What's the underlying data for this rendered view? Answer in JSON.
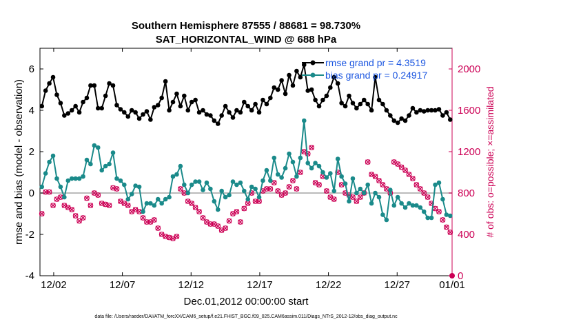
{
  "chart_data": {
    "type": "line",
    "title": "Southern Hemisphere 87555 / 88681 = 98.730%",
    "subtitle": "SAT_HORIZONTAL_WIND @ 688 hPa",
    "xlabel": "Dec.01,2012 00:00:00 start",
    "ylabel_left": "rmse and bias (model - observation)",
    "ylabel_right": "# of obs: o=possible; ×=assimilated",
    "footer": "data file: /Users/raeder/DAI/ATM_forcXX/CAM6_setup/f.e21.FHIST_BGC.f09_025.CAM6assim.011/Diags_NTrS_2012-12/obs_diag_output.nc",
    "xlim": [
      1.0,
      31.0
    ],
    "ylim_left": [
      -4,
      7
    ],
    "ylim_right": [
      0,
      2200
    ],
    "x_ticks": [
      2,
      7,
      12,
      17,
      22,
      27,
      31
    ],
    "x_tick_labels": [
      "12/02",
      "12/07",
      "12/12",
      "12/17",
      "12/22",
      "12/27",
      "01/01"
    ],
    "y_left_ticks": [
      -4,
      -2,
      0,
      2,
      4,
      6
    ],
    "y_left_tick_labels": [
      "-4",
      "-2",
      "0",
      "2",
      "4",
      "6"
    ],
    "y_right_ticks": [
      0,
      400,
      800,
      1200,
      1600,
      2000
    ],
    "y_right_tick_labels": [
      "0",
      "400",
      "800",
      "1200",
      "1600",
      "2000"
    ],
    "series": [
      {
        "name": "rmse grand pr = 4.3519",
        "axis": "left",
        "color": "#000000",
        "marker": "filled-circle",
        "values": [
          4.2,
          4.95,
          5.3,
          5.6,
          4.75,
          4.35,
          3.75,
          3.85,
          4.0,
          4.2,
          3.9,
          4.4,
          4.6,
          5.2,
          5.2,
          4.1,
          4.1,
          4.7,
          5.3,
          5.2,
          4.25,
          4.05,
          3.9,
          3.7,
          4.0,
          3.9,
          3.6,
          3.8,
          3.95,
          3.55,
          4.15,
          4.25,
          4.6,
          5.4,
          4.0,
          4.4,
          4.8,
          4.2,
          4.7,
          4.0,
          4.4,
          4.5,
          3.9,
          4.0,
          3.8,
          3.75,
          3.5,
          3.35,
          3.75,
          4.2,
          3.9,
          3.65,
          4.0,
          3.9,
          4.4,
          4.2,
          4.0,
          4.3,
          3.9,
          4.5,
          4.3,
          4.6,
          5.1,
          5.0,
          5.45,
          4.8,
          5.7,
          5.2,
          5.9,
          5.6,
          6.2,
          4.95,
          5.0,
          4.5,
          4.2,
          4.5,
          4.7,
          5.1,
          5.6,
          5.3,
          4.35,
          4.2,
          4.7,
          4.35,
          4.1,
          4.3,
          4.5,
          4.3,
          4.0,
          5.6,
          4.5,
          4.3,
          4.0,
          3.75,
          3.5,
          3.4,
          3.6,
          3.5,
          3.75,
          4.1,
          3.9,
          4.0,
          3.95,
          4.0,
          4.0,
          4.0,
          4.05,
          3.75,
          3.9,
          3.55
        ]
      },
      {
        "name": "bias grand pr = 0.24917",
        "axis": "left",
        "color": "#1a8a8a",
        "marker": "filled-circle",
        "values": [
          0.3,
          0.95,
          1.5,
          1.8,
          0.7,
          0.3,
          -0.2,
          0.6,
          0.7,
          0.7,
          0.7,
          0.8,
          1.6,
          1.4,
          2.3,
          2.2,
          1.1,
          1.3,
          1.4,
          1.95,
          0.7,
          0.6,
          0.4,
          -0.3,
          -0.05,
          0.35,
          0.3,
          -0.9,
          -0.5,
          -0.5,
          -0.6,
          -0.3,
          -0.5,
          -0.3,
          -0.2,
          0.8,
          0.9,
          1.3,
          0.4,
          0.0,
          0.4,
          0.55,
          0.55,
          0.15,
          0.5,
          0.2,
          -0.4,
          -0.8,
          0.1,
          -0.2,
          -0.1,
          0.55,
          0.4,
          0.5,
          0.1,
          -0.3,
          0.3,
          0.2,
          -0.2,
          0.6,
          1.1,
          0.6,
          1.7,
          0.9,
          0.75,
          1.2,
          1.9,
          1.5,
          0.8,
          1.7,
          3.5,
          1.45,
          1.2,
          1.45,
          1.3,
          1.0,
          0.75,
          0.95,
          0.1,
          1.65,
          0.8,
          0.45,
          -0.4,
          0.7,
          0.0,
          0.2,
          0.0,
          0.4,
          -0.5,
          0.0,
          -0.2,
          -1.05,
          -1.3,
          0.15,
          -0.6,
          -0.2,
          -0.5,
          -0.7,
          -0.5,
          -0.6,
          -0.6,
          -0.7,
          -0.9,
          -1.2,
          -1.2,
          0.4,
          0.5,
          -0.3,
          -1.05,
          -1.1
        ]
      },
      {
        "name": "possible",
        "axis": "right",
        "color": "#cc0055",
        "marker": "circle",
        "values": [
          600,
          810,
          810,
          680,
          740,
          760,
          680,
          660,
          640,
          580,
          530,
          560,
          750,
          680,
          800,
          780,
          700,
          690,
          680,
          850,
          840,
          720,
          700,
          680,
          620,
          640,
          620,
          560,
          520,
          520,
          540,
          460,
          400,
          380,
          370,
          360,
          380,
          840,
          800,
          720,
          700,
          660,
          620,
          560,
          520,
          500,
          500,
          480,
          440,
          460,
          530,
          600,
          620,
          520,
          650,
          700,
          800,
          720,
          720,
          820,
          840,
          840,
          900,
          820,
          780,
          800,
          860,
          920,
          840,
          1000,
          1200,
          1180,
          1240,
          900,
          880,
          960,
          820,
          760,
          740,
          1000,
          880,
          800,
          780,
          760,
          720,
          760,
          800,
          1100,
          980,
          960,
          920,
          880,
          840,
          800,
          1100,
          1080,
          1050,
          1020,
          980,
          940,
          880,
          840,
          800,
          760,
          700,
          650,
          620,
          540,
          470,
          420
        ]
      },
      {
        "name": "assimilated",
        "axis": "right",
        "color": "#cc0055",
        "marker": "x",
        "values": [
          600,
          810,
          810,
          680,
          740,
          760,
          680,
          660,
          640,
          580,
          530,
          560,
          750,
          680,
          800,
          780,
          700,
          690,
          680,
          850,
          840,
          720,
          700,
          680,
          620,
          640,
          620,
          560,
          520,
          520,
          540,
          460,
          400,
          380,
          370,
          360,
          380,
          840,
          800,
          720,
          700,
          660,
          620,
          560,
          520,
          500,
          500,
          480,
          440,
          460,
          530,
          600,
          620,
          520,
          650,
          700,
          800,
          720,
          720,
          820,
          840,
          840,
          900,
          820,
          780,
          800,
          860,
          920,
          840,
          1000,
          1200,
          1180,
          1240,
          900,
          880,
          960,
          820,
          760,
          740,
          1000,
          880,
          800,
          780,
          760,
          720,
          760,
          800,
          1100,
          980,
          960,
          920,
          880,
          840,
          800,
          1100,
          1080,
          1050,
          1020,
          980,
          940,
          880,
          840,
          800,
          760,
          700,
          650,
          620,
          540,
          470,
          420
        ]
      }
    ]
  },
  "legend": {
    "rmse": "rmse grand pr = 4.3519",
    "bias": "bias grand pr = 0.24917"
  }
}
